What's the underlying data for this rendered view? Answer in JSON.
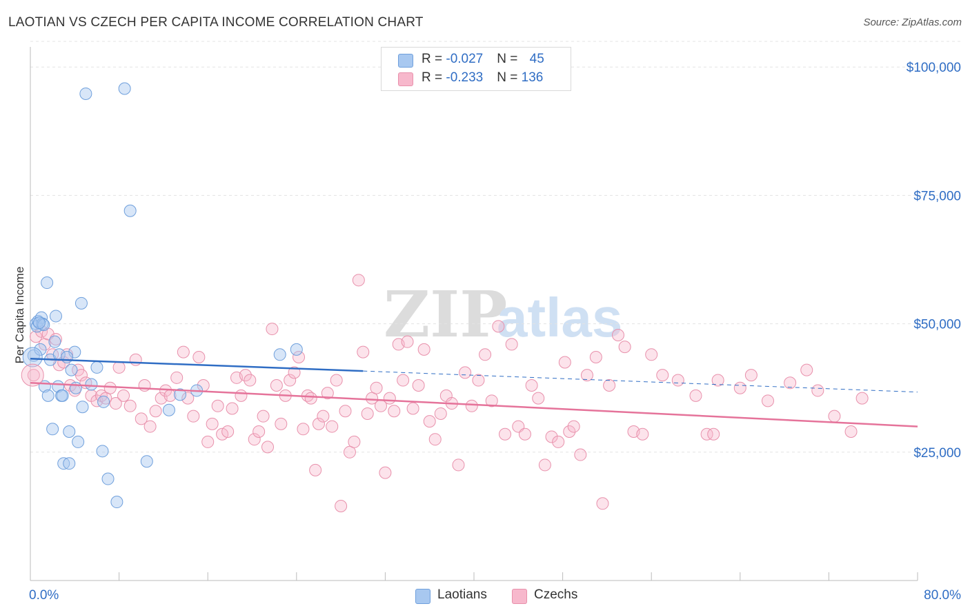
{
  "title": "LAOTIAN VS CZECH PER CAPITA INCOME CORRELATION CHART",
  "source": "Source: ZipAtlas.com",
  "watermark": {
    "zip": "ZIP",
    "atlas": "atlas"
  },
  "legend": {
    "rows": [
      {
        "r_label": "R = ",
        "r_value": "-0.027",
        "n_label": "N = ",
        "n_value": "45",
        "color": "#a8c8f0",
        "border": "#6e9fdc"
      },
      {
        "r_label": "R = ",
        "r_value": "-0.233",
        "n_label": "N = ",
        "n_value": "136",
        "color": "#f7b8cc",
        "border": "#e890ab"
      }
    ]
  },
  "bottom_legend": [
    {
      "label": "Laotians",
      "color": "#a8c8f0",
      "border": "#6e9fdc"
    },
    {
      "label": "Czechs",
      "color": "#f7b8cc",
      "border": "#e890ab"
    }
  ],
  "chart_data": {
    "type": "scatter",
    "title": "LAOTIAN VS CZECH PER CAPITA INCOME CORRELATION CHART",
    "xlabel": "",
    "ylabel": "Per Capita Income",
    "xlim": [
      0,
      80
    ],
    "ylim": [
      0,
      105000
    ],
    "x_tick_labels": [
      "0.0%",
      "80.0%"
    ],
    "y_ticks": [
      25000,
      50000,
      75000,
      100000
    ],
    "y_tick_labels": [
      "$25,000",
      "$50,000",
      "$75,000",
      "$100,000"
    ],
    "grid": true,
    "legend_position": "top-center",
    "colors": {
      "laotians": "#6e9fdc",
      "czechs": "#e890ab",
      "laotians_line": "#2f6dc4",
      "czechs_line": "#e5739a",
      "axis_text": "#2f6dc4"
    },
    "series": [
      {
        "name": "Laotians",
        "trend": {
          "x0": 0,
          "y0": 43200,
          "x1": 30,
          "y1": 40800,
          "dash_to_x": 80,
          "dash_to_y": 36700
        },
        "points": [
          [
            0.3,
            43800
          ],
          [
            0.5,
            50000
          ],
          [
            0.6,
            49500
          ],
          [
            0.7,
            50500
          ],
          [
            0.9,
            45000
          ],
          [
            1.0,
            51200
          ],
          [
            1.1,
            50000
          ],
          [
            1.3,
            37800
          ],
          [
            1.5,
            58000
          ],
          [
            1.6,
            36000
          ],
          [
            1.8,
            43000
          ],
          [
            2.0,
            29500
          ],
          [
            2.2,
            46500
          ],
          [
            2.3,
            51500
          ],
          [
            2.5,
            37800
          ],
          [
            2.6,
            44000
          ],
          [
            2.8,
            36000
          ],
          [
            3.0,
            22800
          ],
          [
            3.5,
            29000
          ],
          [
            3.5,
            22800
          ],
          [
            3.7,
            41000
          ],
          [
            4.0,
            44500
          ],
          [
            4.3,
            27000
          ],
          [
            4.6,
            54000
          ],
          [
            4.7,
            33800
          ],
          [
            5.0,
            94800
          ],
          [
            5.5,
            38200
          ],
          [
            6.5,
            25200
          ],
          [
            6.6,
            34800
          ],
          [
            7.0,
            19800
          ],
          [
            7.8,
            15300
          ],
          [
            8.5,
            95800
          ],
          [
            9.0,
            72000
          ],
          [
            10.5,
            23200
          ],
          [
            12.5,
            33200
          ],
          [
            13.5,
            36200
          ],
          [
            15.0,
            37000
          ],
          [
            22.5,
            44000
          ],
          [
            24.0,
            45000
          ],
          [
            2.9,
            36000
          ],
          [
            3.3,
            43500
          ],
          [
            1.2,
            49800
          ],
          [
            0.8,
            50200
          ],
          [
            6.0,
            41500
          ],
          [
            4.1,
            37500
          ]
        ]
      },
      {
        "name": "Czechs",
        "trend": {
          "x0": 0,
          "y0": 38500,
          "x1": 80,
          "y1": 30000
        },
        "points": [
          [
            0.3,
            40000
          ],
          [
            0.5,
            47500
          ],
          [
            1.0,
            48500
          ],
          [
            1.3,
            46000
          ],
          [
            1.6,
            48000
          ],
          [
            2.0,
            44000
          ],
          [
            2.3,
            47000
          ],
          [
            2.6,
            42000
          ],
          [
            3.0,
            42500
          ],
          [
            3.3,
            44000
          ],
          [
            3.6,
            38000
          ],
          [
            4.0,
            37000
          ],
          [
            4.3,
            41000
          ],
          [
            4.6,
            40000
          ],
          [
            5.0,
            38500
          ],
          [
            5.5,
            36000
          ],
          [
            6.0,
            35000
          ],
          [
            6.4,
            36000
          ],
          [
            6.8,
            35500
          ],
          [
            7.2,
            37500
          ],
          [
            7.7,
            34500
          ],
          [
            8.0,
            41500
          ],
          [
            8.4,
            36000
          ],
          [
            9.0,
            34000
          ],
          [
            9.5,
            43000
          ],
          [
            10.0,
            31500
          ],
          [
            10.3,
            38000
          ],
          [
            10.8,
            30000
          ],
          [
            11.3,
            33000
          ],
          [
            11.8,
            35500
          ],
          [
            12.2,
            37000
          ],
          [
            12.6,
            36000
          ],
          [
            13.2,
            39500
          ],
          [
            13.8,
            44500
          ],
          [
            14.2,
            35500
          ],
          [
            14.7,
            32000
          ],
          [
            15.2,
            43500
          ],
          [
            15.6,
            38000
          ],
          [
            16.0,
            27000
          ],
          [
            16.4,
            30500
          ],
          [
            16.9,
            34000
          ],
          [
            17.3,
            28500
          ],
          [
            17.8,
            29000
          ],
          [
            18.2,
            33500
          ],
          [
            18.6,
            39500
          ],
          [
            19.0,
            36000
          ],
          [
            19.4,
            40000
          ],
          [
            19.8,
            39000
          ],
          [
            20.2,
            27500
          ],
          [
            20.6,
            29000
          ],
          [
            21.0,
            32000
          ],
          [
            21.4,
            26000
          ],
          [
            21.8,
            49000
          ],
          [
            22.2,
            38000
          ],
          [
            22.6,
            30500
          ],
          [
            23.0,
            36000
          ],
          [
            23.4,
            39000
          ],
          [
            23.8,
            40500
          ],
          [
            24.2,
            43500
          ],
          [
            24.6,
            29500
          ],
          [
            25.0,
            36000
          ],
          [
            25.3,
            35500
          ],
          [
            25.7,
            21500
          ],
          [
            26.0,
            30500
          ],
          [
            26.4,
            32000
          ],
          [
            26.8,
            36500
          ],
          [
            27.2,
            30000
          ],
          [
            27.6,
            39000
          ],
          [
            28.0,
            14500
          ],
          [
            28.4,
            33000
          ],
          [
            28.8,
            25000
          ],
          [
            29.2,
            27000
          ],
          [
            29.6,
            58500
          ],
          [
            30.0,
            44500
          ],
          [
            30.4,
            32500
          ],
          [
            30.8,
            35500
          ],
          [
            31.2,
            37500
          ],
          [
            31.6,
            34000
          ],
          [
            32.0,
            21000
          ],
          [
            32.4,
            35500
          ],
          [
            32.8,
            33000
          ],
          [
            33.2,
            46000
          ],
          [
            33.6,
            39000
          ],
          [
            34.0,
            46500
          ],
          [
            34.5,
            33500
          ],
          [
            35.0,
            38000
          ],
          [
            35.5,
            45000
          ],
          [
            36.0,
            31000
          ],
          [
            36.5,
            27500
          ],
          [
            37.0,
            32500
          ],
          [
            37.5,
            36000
          ],
          [
            38.0,
            34500
          ],
          [
            38.6,
            22500
          ],
          [
            39.2,
            40500
          ],
          [
            39.8,
            34000
          ],
          [
            40.4,
            39000
          ],
          [
            41.0,
            44000
          ],
          [
            41.6,
            35000
          ],
          [
            42.2,
            49500
          ],
          [
            42.8,
            28500
          ],
          [
            43.4,
            46000
          ],
          [
            44.0,
            30000
          ],
          [
            44.6,
            28500
          ],
          [
            45.2,
            38000
          ],
          [
            45.8,
            35500
          ],
          [
            46.4,
            22500
          ],
          [
            47.0,
            28000
          ],
          [
            47.6,
            27000
          ],
          [
            48.2,
            42500
          ],
          [
            48.6,
            29000
          ],
          [
            49.0,
            30000
          ],
          [
            49.6,
            24500
          ],
          [
            50.2,
            40000
          ],
          [
            51.0,
            43500
          ],
          [
            51.6,
            15000
          ],
          [
            52.2,
            38000
          ],
          [
            53.0,
            47800
          ],
          [
            53.6,
            45500
          ],
          [
            54.4,
            29000
          ],
          [
            55.2,
            28500
          ],
          [
            56.0,
            44000
          ],
          [
            57.0,
            40000
          ],
          [
            58.4,
            39000
          ],
          [
            60.0,
            36000
          ],
          [
            61.0,
            28500
          ],
          [
            61.6,
            28500
          ],
          [
            62.0,
            39000
          ],
          [
            64.0,
            37500
          ],
          [
            65.0,
            40000
          ],
          [
            66.5,
            35000
          ],
          [
            68.5,
            38500
          ],
          [
            70.0,
            41000
          ],
          [
            71.0,
            37000
          ],
          [
            72.5,
            32000
          ],
          [
            74.0,
            29000
          ],
          [
            75.0,
            35500
          ]
        ]
      }
    ]
  }
}
